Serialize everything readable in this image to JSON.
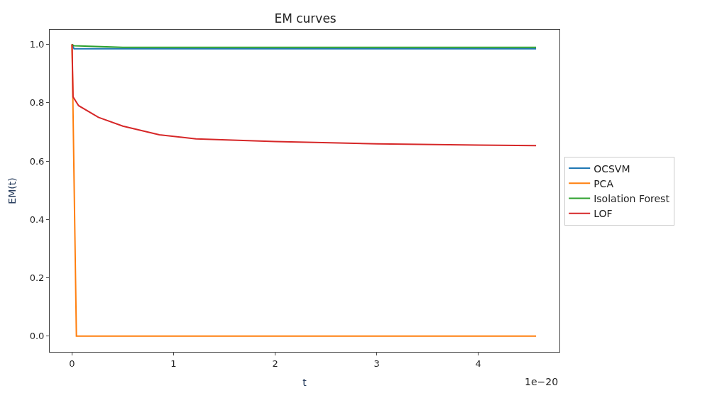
{
  "chart_data": {
    "type": "line",
    "title": "EM curves",
    "xlabel": "t",
    "ylabel": "EM(t)",
    "annotations": [
      "1e−20"
    ],
    "xlim": [
      -0.22,
      4.8
    ],
    "xticks": [
      0,
      1,
      2,
      3,
      4
    ],
    "ylim": [
      -0.054,
      1.05
    ],
    "yticks": [
      {
        "value": 0,
        "label": "0.0"
      },
      {
        "value": 0.2,
        "label": "0.2"
      },
      {
        "value": 0.4,
        "label": "0.4"
      },
      {
        "value": 0.6,
        "label": "0.6"
      },
      {
        "value": 0.8,
        "label": "0.8"
      },
      {
        "value": 1,
        "label": "1.0"
      }
    ],
    "legend": "right",
    "marker": "none",
    "line_style": "solid",
    "series": [
      {
        "name": "OCSVM",
        "color": "#1f77b4",
        "x": [
          0,
          0.02,
          4.57
        ],
        "values": [
          1.0,
          0.985,
          0.985
        ]
      },
      {
        "name": "PCA",
        "color": "#ff7f0e",
        "x": [
          0,
          0.043,
          4.57
        ],
        "values": [
          1.0,
          0.0,
          0.0
        ]
      },
      {
        "name": "Isolation Forest",
        "color": "#2ca02c",
        "x": [
          0,
          0.02,
          0.5,
          4.57
        ],
        "values": [
          1.0,
          0.995,
          0.99,
          0.99
        ]
      },
      {
        "name": "LOF",
        "color": "#d62728",
        "x": [
          0,
          0.01,
          0.065,
          0.26,
          0.5,
          0.86,
          1.22,
          1.58,
          2,
          3,
          4,
          4.57
        ],
        "values": [
          1.0,
          0.82,
          0.79,
          0.75,
          0.72,
          0.69,
          0.676,
          0.672,
          0.667,
          0.659,
          0.655,
          0.653
        ]
      }
    ]
  }
}
